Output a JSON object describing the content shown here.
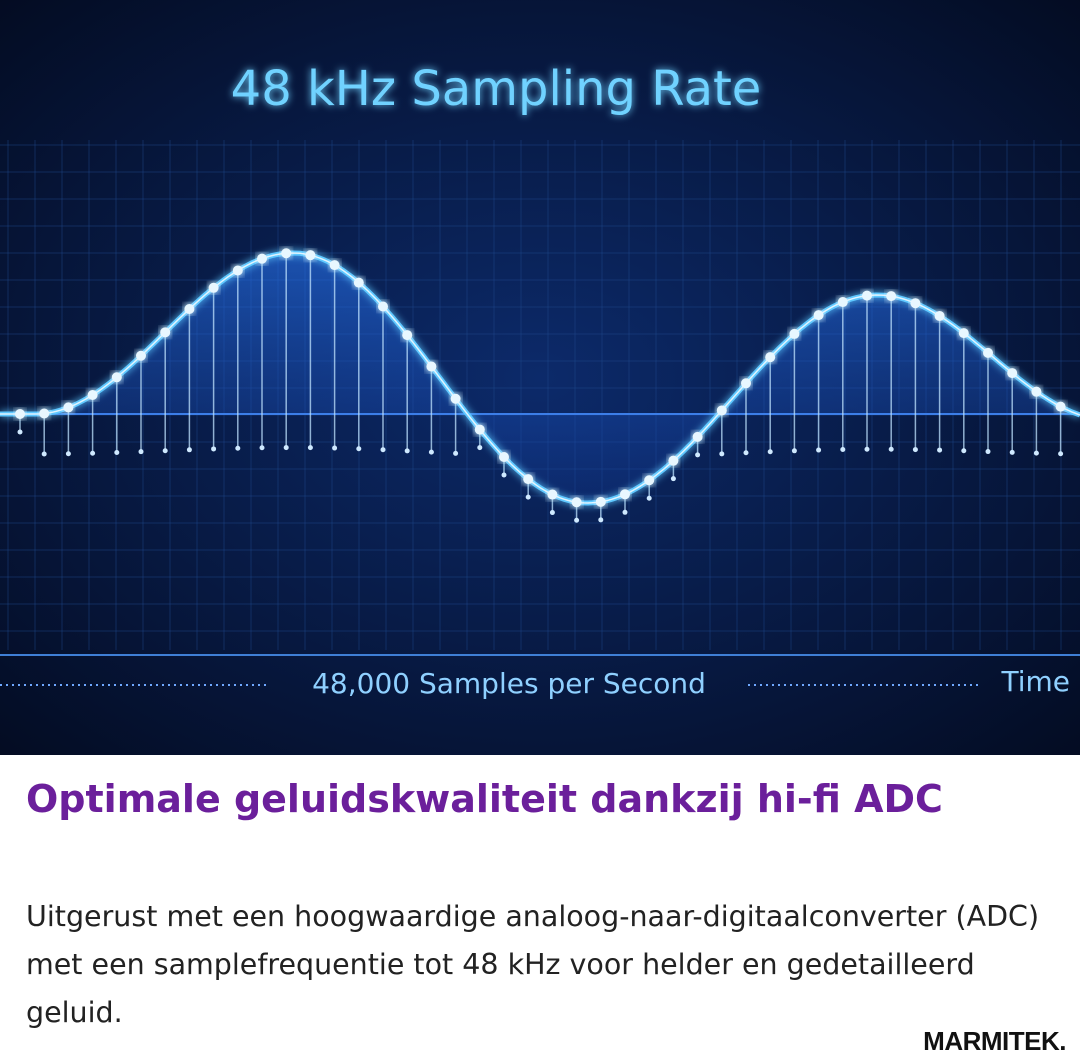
{
  "image": {
    "title": "48 kHz Sampling Rate",
    "caption": "48,000 Samples per Second",
    "axis_label": "Time"
  },
  "heading": "Optimale geluidskwaliteit dankzij hi-fi ADC",
  "body": "Uitgerust met een hoogwaardige analoog-naar-digitaalconverter (ADC) met een samplefrequentie tot 48 kHz voor helder en gedetailleerd geluid.",
  "brand": "MARMITEK."
}
